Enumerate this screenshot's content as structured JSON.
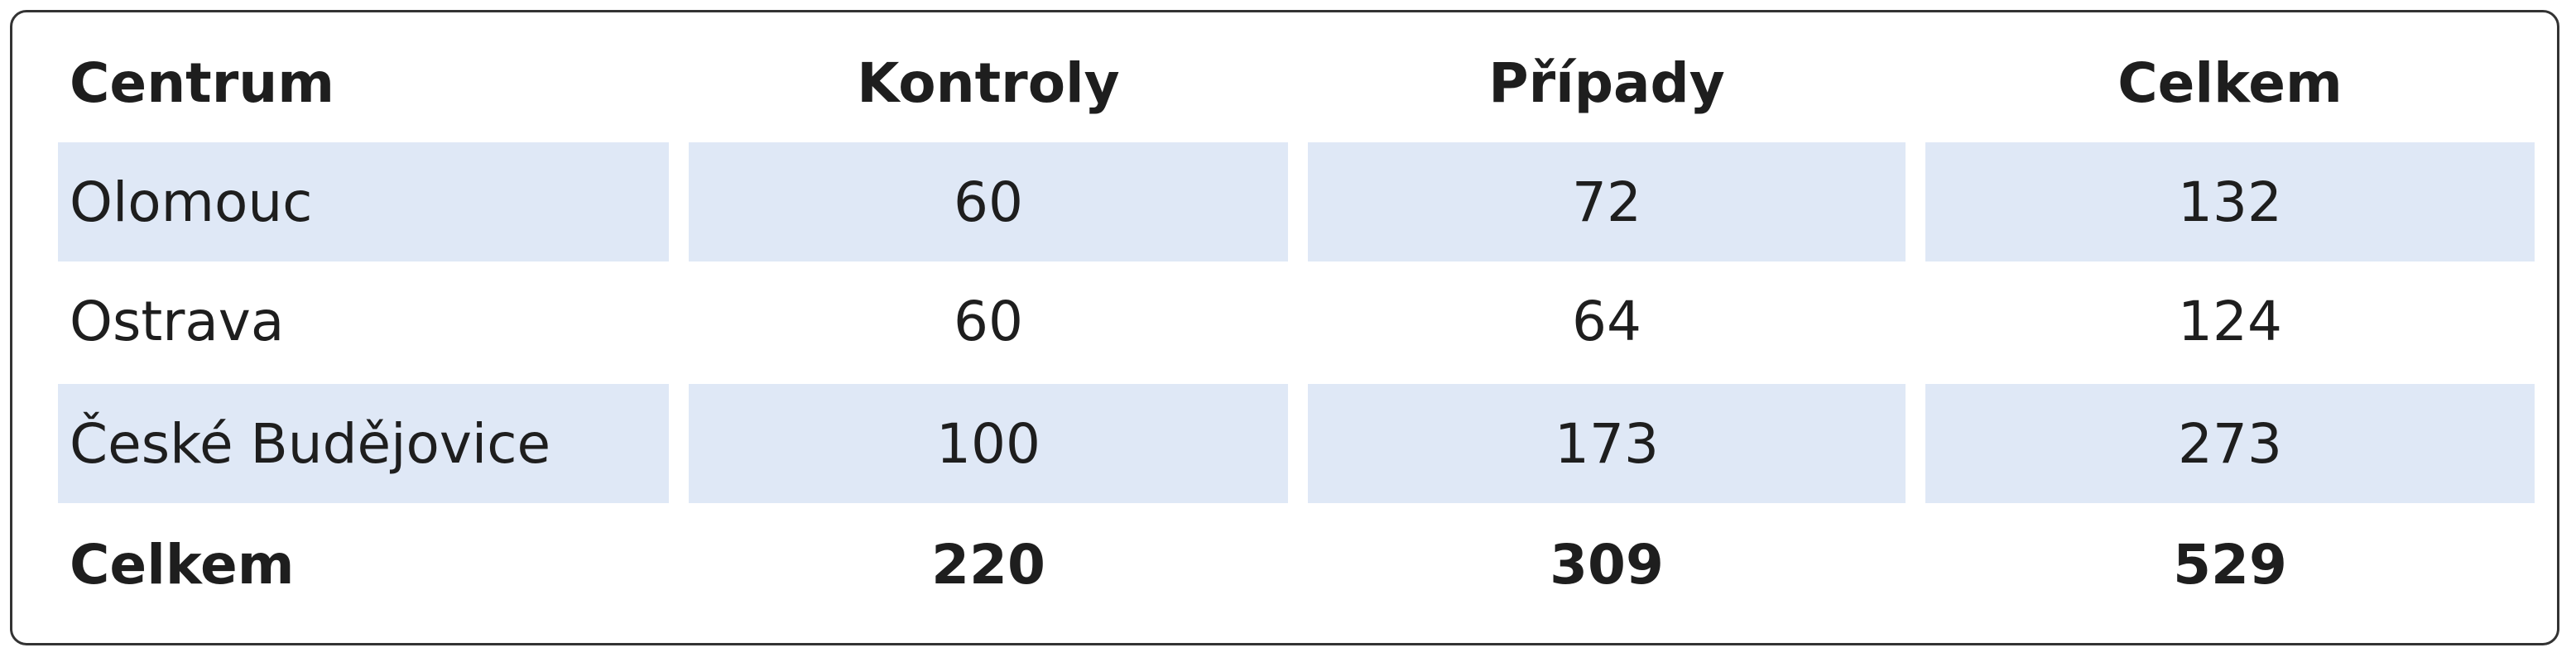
{
  "table": {
    "header": [
      "Centrum",
      "Kontroly",
      "Případy",
      "Celkem"
    ],
    "rows": [
      [
        "Olomouc",
        60,
        72,
        132
      ],
      [
        "Ostrava",
        60,
        64,
        124
      ],
      [
        "České Budějovice",
        100,
        173,
        273
      ],
      [
        "Celkem",
        220,
        309,
        529
      ]
    ]
  }
}
